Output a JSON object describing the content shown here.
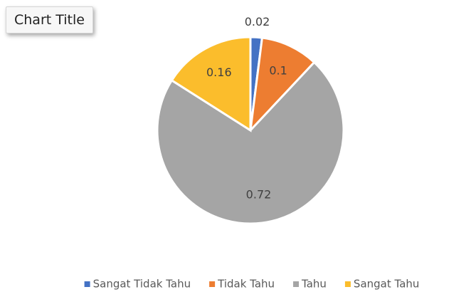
{
  "chart_data": {
    "type": "pie",
    "title": "Chart Title",
    "categories": [
      "Sangat Tidak Tahu",
      "Tidak Tahu",
      "Tahu",
      "Sangat Tahu"
    ],
    "values": [
      0.02,
      0.1,
      0.72,
      0.16
    ],
    "colors": [
      "#4472c4",
      "#ed7d31",
      "#a5a5a5",
      "#fbbd2c"
    ],
    "legend": "bottom"
  }
}
